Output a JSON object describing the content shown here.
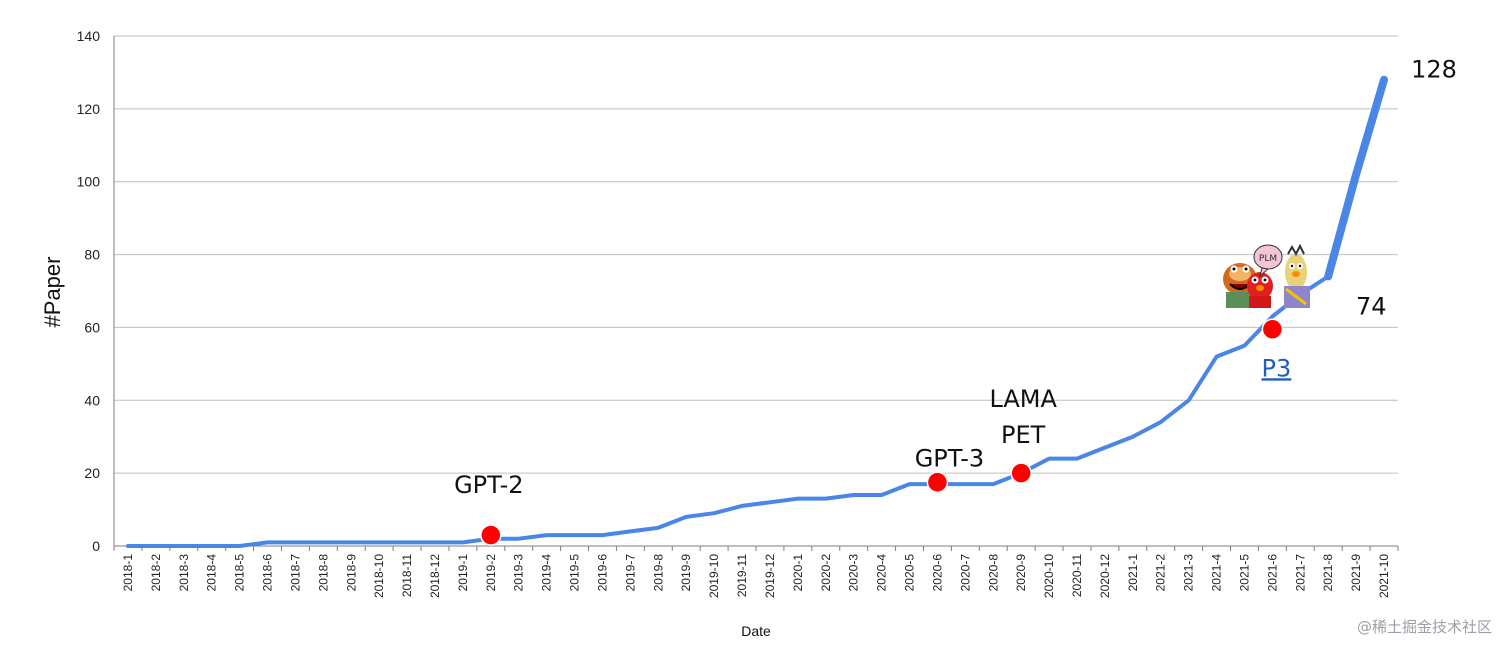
{
  "watermark": "@稀土掘金技术社区",
  "colors": {
    "line": "#4a86e8",
    "marker": "#ff0000",
    "grid": "#bfbfbf",
    "link": "#1f5fbf"
  },
  "chart_data": {
    "type": "line",
    "title": "",
    "xlabel": "Date",
    "ylabel": "#Paper",
    "ylim": [
      0,
      140
    ],
    "yticks": [
      0,
      20,
      40,
      60,
      80,
      100,
      120,
      140
    ],
    "grid": true,
    "legend": "none",
    "categories": [
      "2018-1",
      "2018-2",
      "2018-3",
      "2018-4",
      "2018-5",
      "2018-6",
      "2018-7",
      "2018-8",
      "2018-9",
      "2018-10",
      "2018-11",
      "2018-12",
      "2019-1",
      "2019-2",
      "2019-3",
      "2019-4",
      "2019-5",
      "2019-6",
      "2019-7",
      "2019-8",
      "2019-9",
      "2019-10",
      "2019-11",
      "2019-12",
      "2020-1",
      "2020-2",
      "2020-3",
      "2020-4",
      "2020-5",
      "2020-6",
      "2020-7",
      "2020-8",
      "2020-9",
      "2020-10",
      "2020-11",
      "2020-12",
      "2021-1",
      "2021-2",
      "2021-3",
      "2021-4",
      "2021-5",
      "2021-6",
      "2021-7",
      "2021-8",
      "2021-9",
      "2021-10"
    ],
    "series": [
      {
        "values": [
          0,
          0,
          0,
          0,
          0,
          1,
          1,
          1,
          1,
          1,
          1,
          1,
          1,
          2,
          2,
          3,
          3,
          3,
          4,
          5,
          8,
          9,
          11,
          12,
          13,
          13,
          14,
          14,
          17,
          17,
          17,
          17,
          20,
          24,
          24,
          27,
          30,
          34,
          40,
          52,
          55,
          63,
          69,
          74,
          102,
          128
        ]
      }
    ],
    "markers": [
      {
        "x": "2019-2",
        "y": 3,
        "labels": [
          "GPT-2"
        ],
        "link": false
      },
      {
        "x": "2020-6",
        "y": 17.5,
        "labels": [
          "GPT-3"
        ],
        "link": false
      },
      {
        "x": "2020-9",
        "y": 20,
        "labels": [
          "LAMA",
          "PET"
        ],
        "link": false
      },
      {
        "x": "2021-6",
        "y": 59.5,
        "labels": [
          "P3"
        ],
        "link": true
      }
    ],
    "value_labels": [
      {
        "x": "2021-8",
        "text": "74"
      },
      {
        "x": "2021-10",
        "text": "128"
      }
    ],
    "image_label": "PLM"
  }
}
